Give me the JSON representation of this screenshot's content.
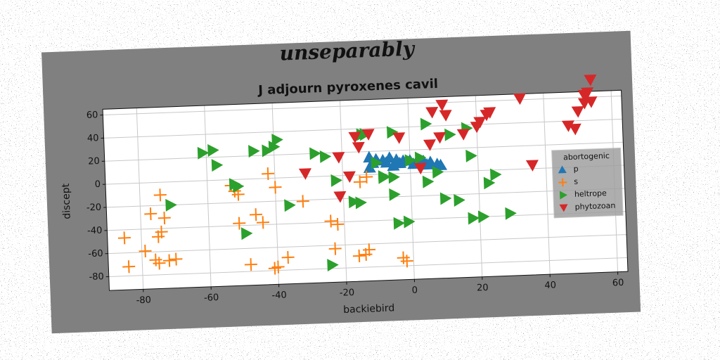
{
  "chart_data": {
    "type": "scatter",
    "suptitle": "unseparably",
    "title": "J adjourn pyroxenes cavil",
    "xlabel": "backiebird",
    "ylabel": "discept",
    "legend_title": "abortogenic",
    "legend": "upper right",
    "grid": true,
    "xlim": [
      -90,
      63
    ],
    "ylim": [
      -92,
      65
    ],
    "xticks": [
      -80,
      -60,
      -40,
      -20,
      0,
      20,
      40,
      60
    ],
    "yticks": [
      -80,
      -60,
      -40,
      -20,
      0,
      20,
      40,
      60
    ],
    "series": [
      {
        "name": "p",
        "color": "#1f77b4",
        "marker": "triangle-up",
        "x": [
          -12,
          -10,
          -8,
          -6,
          -4,
          -2,
          0,
          2,
          4,
          6,
          8,
          -11,
          -7,
          -3,
          1,
          5,
          9,
          -12,
          -5
        ],
        "y": [
          15,
          13,
          12,
          14,
          12,
          11,
          11,
          10,
          10,
          9,
          7,
          10,
          10,
          9,
          8,
          7,
          6,
          6,
          7
        ]
      },
      {
        "name": "s",
        "color": "#ff7f0e",
        "marker": "plus",
        "x": [
          -85,
          -84,
          -79,
          -77,
          -76,
          -75,
          -75,
          -74,
          -74,
          -73,
          -72,
          -70,
          -53,
          -52,
          -51,
          -51,
          -48,
          -46,
          -44,
          -42,
          -41,
          -40,
          -40,
          -37,
          -32,
          -24,
          -23,
          -22,
          -16,
          -15,
          -14,
          -13,
          -13,
          -3,
          -2
        ],
        "y": [
          -47,
          -72,
          -59,
          -27,
          -67,
          -70,
          -47,
          -11,
          -43,
          -31,
          -68,
          -67,
          -5,
          -10,
          -13,
          -38,
          -74,
          -31,
          -38,
          4,
          -78,
          -77,
          -8,
          -69,
          -21,
          -39,
          -63,
          -42,
          -70,
          -6,
          -69,
          -65,
          -2,
          -73,
          -76
        ]
      },
      {
        "name": "heltrope",
        "color": "#2ca02c",
        "marker": "triangle-right",
        "x": [
          -61,
          -58,
          -57,
          -52,
          -51,
          -71,
          -49,
          -46,
          -42,
          -40,
          -39,
          -36,
          -28,
          -25,
          -22,
          -17,
          -15,
          -14,
          -13,
          -10,
          -8,
          -8,
          -5,
          -5,
          -5,
          -4,
          -1,
          0,
          3,
          5,
          5,
          8,
          10,
          12,
          14,
          17,
          18,
          18,
          21,
          23,
          25,
          29,
          -24
        ],
        "y": [
          24,
          26,
          13,
          -4,
          -6,
          -20,
          -47,
          24,
          24,
          27,
          33,
          -24,
          20,
          17,
          -4,
          -23,
          -24,
          35,
          35,
          10,
          -2,
          -3,
          -3,
          -18,
          36,
          -43,
          -42,
          11,
          13,
          42,
          -8,
          0,
          -23,
          32,
          -25,
          37,
          13,
          -41,
          -40,
          -11,
          -4,
          -38,
          -77
        ]
      },
      {
        "name": "phytozoan",
        "color": "#d62728",
        "marker": "triangle-down",
        "x": [
          -31,
          -21,
          -21,
          -18,
          -16,
          -15,
          -12,
          -3,
          3,
          6,
          7,
          9,
          10,
          11,
          16,
          20,
          21,
          23,
          24,
          33,
          36,
          47,
          49,
          50,
          52,
          52,
          53,
          54,
          54
        ],
        "y": [
          3,
          16,
          -18,
          -1,
          33,
          24,
          35,
          31,
          4,
          24,
          52,
          30,
          58,
          49,
          32,
          38,
          42,
          48,
          50,
          61,
          3,
          36,
          33,
          48,
          55,
          62,
          64,
          75,
          56
        ]
      }
    ]
  }
}
